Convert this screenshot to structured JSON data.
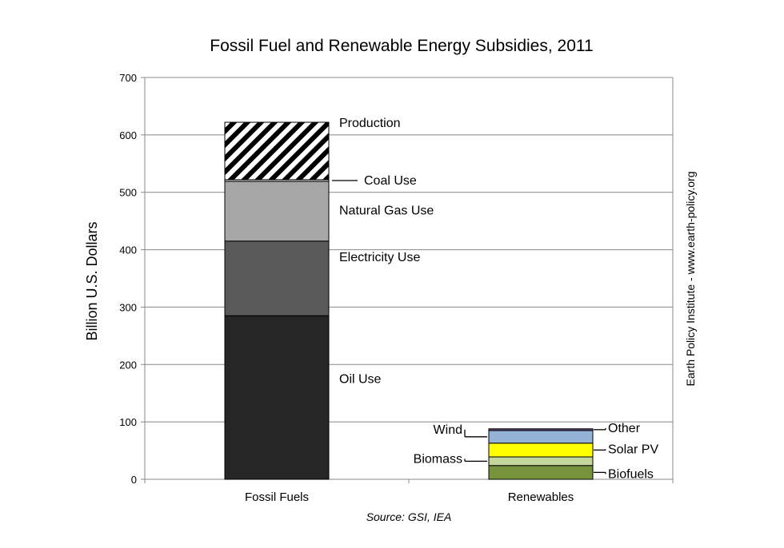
{
  "chart_data": {
    "type": "bar",
    "stacked": true,
    "title": "Fossil Fuel and Renewable Energy Subsidies, 2011",
    "ylabel": "Billion U.S. Dollars",
    "ylim": [
      0,
      700
    ],
    "yticks": [
      "0",
      "100",
      "200",
      "300",
      "400",
      "500",
      "600",
      "700"
    ],
    "grid": true,
    "categories": [
      "Fossil Fuels",
      "Renewables"
    ],
    "stacks": [
      {
        "category": "Fossil Fuels",
        "segments": [
          {
            "name": "Oil Use",
            "value": 285,
            "color": "#262626"
          },
          {
            "name": "Electricity Use",
            "value": 130,
            "color": "#595959"
          },
          {
            "name": "Natural Gas Use",
            "value": 104,
            "color": "#a6a6a6"
          },
          {
            "name": "Coal Use",
            "value": 3,
            "color": "#d9d9d9"
          },
          {
            "name": "Production",
            "value": 100,
            "color": "hatch"
          }
        ]
      },
      {
        "category": "Renewables",
        "segments": [
          {
            "name": "Biofuels",
            "value": 24,
            "color": "#77933c"
          },
          {
            "name": "Biomass",
            "value": 15,
            "color": "#c3d69b"
          },
          {
            "name": "Solar PV",
            "value": 24,
            "color": "#ffff00"
          },
          {
            "name": "Wind",
            "value": 22,
            "color": "#95b3d7"
          },
          {
            "name": "Other",
            "value": 3,
            "color": "#604a7b"
          }
        ]
      }
    ],
    "side_note": "Earth Policy Institute - www.earth-policy.org",
    "source": "Source: GSI, IEA"
  }
}
